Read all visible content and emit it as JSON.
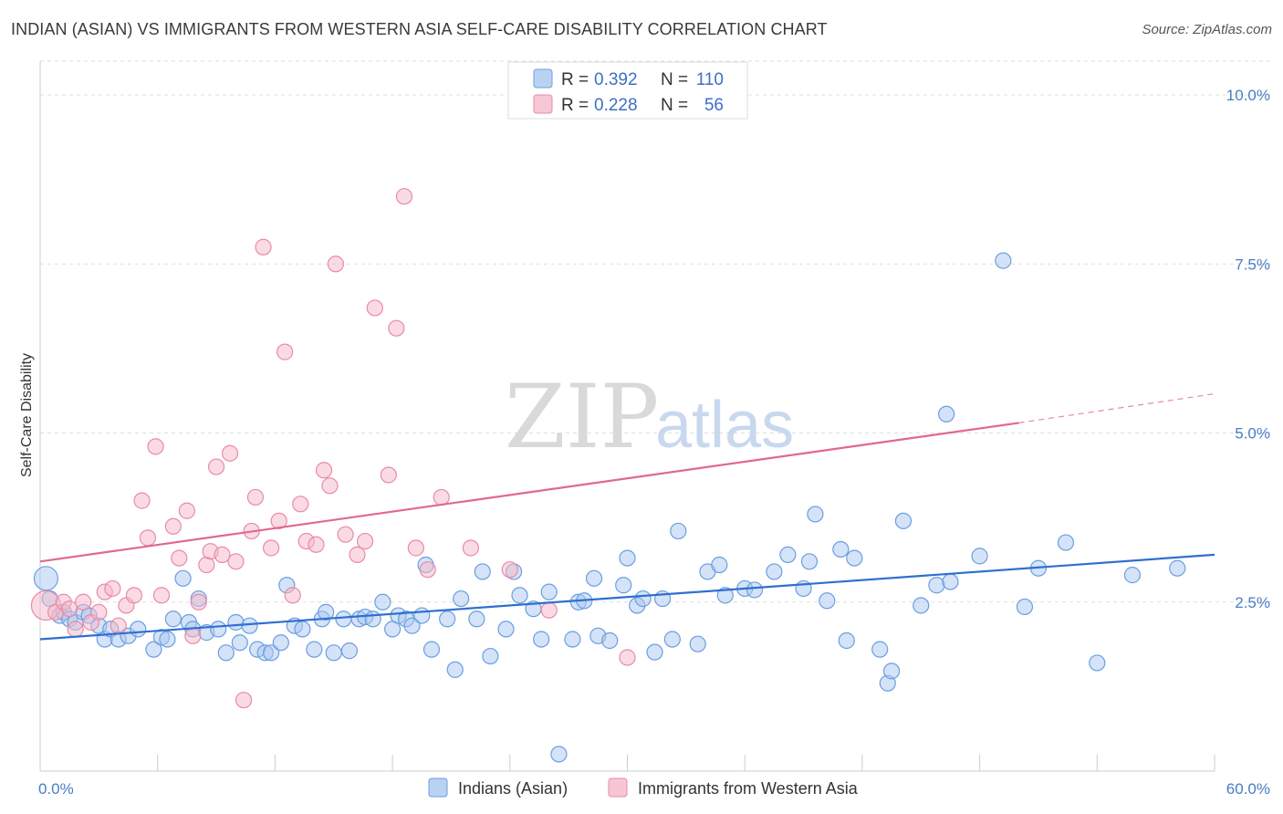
{
  "title": "INDIAN (ASIAN) VS IMMIGRANTS FROM WESTERN ASIA SELF-CARE DISABILITY CORRELATION CHART",
  "source": "Source: ZipAtlas.com",
  "watermark": {
    "zip": "ZIP",
    "atlas": "atlas"
  },
  "legend_top": [
    {
      "r_label": "R =",
      "r_value": "0.392",
      "n_label": "N =",
      "n_value": "110",
      "color": "#a9c7ef"
    },
    {
      "r_label": "R =",
      "r_value": "0.228",
      "n_label": "N =",
      "n_value": "56",
      "color": "#f5b8c9"
    }
  ],
  "legend_bottom": [
    {
      "label": "Indians (Asian)",
      "color": "#a9c7ef"
    },
    {
      "label": "Immigrants from Western Asia",
      "color": "#f5b8c9"
    }
  ],
  "chart_data": {
    "type": "scatter",
    "xlabel": "",
    "ylabel": "Self-Care Disability",
    "xlim": [
      0,
      60
    ],
    "ylim": [
      0,
      10.5
    ],
    "x_tick_labels": [
      "0.0%",
      "60.0%"
    ],
    "y_ticks": [
      2.5,
      5.0,
      7.5,
      10.0
    ],
    "y_tick_labels": [
      "2.5%",
      "5.0%",
      "7.5%",
      "10.0%"
    ],
    "grid": true,
    "series": [
      {
        "name": "Indians (Asian)",
        "color": "#6a9ee0",
        "fill": "#a9c7ef",
        "trend_color": "#2f6fd0",
        "trend": {
          "x0": 0,
          "y0": 1.95,
          "x1": 60,
          "y1": 3.2
        },
        "points": [
          [
            0.3,
            2.85
          ],
          [
            0.5,
            2.55
          ],
          [
            1.0,
            2.3
          ],
          [
            1.2,
            2.35
          ],
          [
            1.5,
            2.25
          ],
          [
            1.8,
            2.2
          ],
          [
            2.2,
            2.35
          ],
          [
            2.5,
            2.3
          ],
          [
            3.0,
            2.15
          ],
          [
            3.3,
            1.95
          ],
          [
            3.6,
            2.1
          ],
          [
            4.0,
            1.95
          ],
          [
            4.5,
            2.0
          ],
          [
            5.0,
            2.1
          ],
          [
            5.8,
            1.8
          ],
          [
            6.2,
            1.98
          ],
          [
            6.5,
            1.95
          ],
          [
            6.8,
            2.25
          ],
          [
            7.3,
            2.85
          ],
          [
            7.6,
            2.2
          ],
          [
            7.8,
            2.1
          ],
          [
            8.1,
            2.55
          ],
          [
            8.5,
            2.05
          ],
          [
            9.1,
            2.1
          ],
          [
            9.5,
            1.75
          ],
          [
            10.0,
            2.2
          ],
          [
            10.2,
            1.9
          ],
          [
            10.7,
            2.15
          ],
          [
            11.1,
            1.8
          ],
          [
            11.5,
            1.75
          ],
          [
            11.8,
            1.75
          ],
          [
            12.3,
            1.9
          ],
          [
            12.6,
            2.75
          ],
          [
            13.0,
            2.15
          ],
          [
            13.4,
            2.1
          ],
          [
            14.0,
            1.8
          ],
          [
            14.4,
            2.25
          ],
          [
            14.6,
            2.35
          ],
          [
            15.0,
            1.75
          ],
          [
            15.5,
            2.25
          ],
          [
            15.8,
            1.78
          ],
          [
            16.3,
            2.25
          ],
          [
            16.6,
            2.28
          ],
          [
            17.0,
            2.25
          ],
          [
            17.5,
            2.5
          ],
          [
            18.0,
            2.1
          ],
          [
            18.3,
            2.3
          ],
          [
            18.7,
            2.25
          ],
          [
            19.0,
            2.15
          ],
          [
            19.5,
            2.3
          ],
          [
            19.7,
            3.05
          ],
          [
            20.0,
            1.8
          ],
          [
            20.8,
            2.25
          ],
          [
            21.2,
            1.5
          ],
          [
            21.5,
            2.55
          ],
          [
            22.3,
            2.25
          ],
          [
            22.6,
            2.95
          ],
          [
            23.0,
            1.7
          ],
          [
            23.8,
            2.1
          ],
          [
            24.2,
            2.95
          ],
          [
            24.5,
            2.6
          ],
          [
            25.2,
            2.4
          ],
          [
            25.6,
            1.95
          ],
          [
            26.0,
            2.65
          ],
          [
            26.5,
            0.25
          ],
          [
            27.2,
            1.95
          ],
          [
            27.5,
            2.5
          ],
          [
            27.8,
            2.52
          ],
          [
            28.3,
            2.85
          ],
          [
            28.5,
            2.0
          ],
          [
            29.1,
            1.93
          ],
          [
            29.8,
            2.75
          ],
          [
            30.0,
            3.15
          ],
          [
            30.5,
            2.45
          ],
          [
            30.8,
            2.55
          ],
          [
            31.4,
            1.76
          ],
          [
            31.8,
            2.55
          ],
          [
            32.3,
            1.95
          ],
          [
            32.6,
            3.55
          ],
          [
            33.6,
            1.88
          ],
          [
            34.1,
            2.95
          ],
          [
            34.7,
            3.05
          ],
          [
            35.0,
            2.6
          ],
          [
            36.0,
            2.7
          ],
          [
            36.5,
            2.68
          ],
          [
            37.5,
            2.95
          ],
          [
            38.2,
            3.2
          ],
          [
            39.0,
            2.7
          ],
          [
            39.3,
            3.1
          ],
          [
            39.6,
            3.8
          ],
          [
            40.2,
            2.52
          ],
          [
            40.9,
            3.28
          ],
          [
            41.2,
            1.93
          ],
          [
            41.6,
            3.15
          ],
          [
            42.9,
            1.8
          ],
          [
            43.3,
            1.3
          ],
          [
            43.5,
            1.48
          ],
          [
            44.1,
            3.7
          ],
          [
            45.0,
            2.45
          ],
          [
            45.8,
            2.75
          ],
          [
            46.3,
            5.28
          ],
          [
            46.5,
            2.8
          ],
          [
            48.0,
            3.18
          ],
          [
            49.2,
            7.55
          ],
          [
            50.3,
            2.43
          ],
          [
            51.0,
            3.0
          ],
          [
            52.4,
            3.38
          ],
          [
            54.0,
            1.6
          ],
          [
            55.8,
            2.9
          ],
          [
            58.1,
            3.0
          ]
        ]
      },
      {
        "name": "Immigrants from Western Asia",
        "color": "#e98aa6",
        "fill": "#f5b8c9",
        "trend_color": "#e06890",
        "trend": {
          "x0": 0,
          "y0": 3.1,
          "x1": 50,
          "y1": 5.15
        },
        "trend_dashed_to": {
          "x": 60,
          "y": 5.58
        },
        "points": [
          [
            0.3,
            2.45
          ],
          [
            0.8,
            2.35
          ],
          [
            1.2,
            2.5
          ],
          [
            1.5,
            2.4
          ],
          [
            1.8,
            2.1
          ],
          [
            2.2,
            2.5
          ],
          [
            2.6,
            2.2
          ],
          [
            3.0,
            2.35
          ],
          [
            3.3,
            2.65
          ],
          [
            3.7,
            2.7
          ],
          [
            4.0,
            2.15
          ],
          [
            4.4,
            2.45
          ],
          [
            4.8,
            2.6
          ],
          [
            5.2,
            4.0
          ],
          [
            5.5,
            3.45
          ],
          [
            5.9,
            4.8
          ],
          [
            6.2,
            2.6
          ],
          [
            6.8,
            3.62
          ],
          [
            7.1,
            3.15
          ],
          [
            7.5,
            3.85
          ],
          [
            7.8,
            2.0
          ],
          [
            8.1,
            2.5
          ],
          [
            8.5,
            3.05
          ],
          [
            8.7,
            3.25
          ],
          [
            9.0,
            4.5
          ],
          [
            9.3,
            3.2
          ],
          [
            9.7,
            4.7
          ],
          [
            10.0,
            3.1
          ],
          [
            10.4,
            1.05
          ],
          [
            10.8,
            3.55
          ],
          [
            11.0,
            4.05
          ],
          [
            11.4,
            7.75
          ],
          [
            11.8,
            3.3
          ],
          [
            12.2,
            3.7
          ],
          [
            12.5,
            6.2
          ],
          [
            12.9,
            2.6
          ],
          [
            13.3,
            3.95
          ],
          [
            13.6,
            3.4
          ],
          [
            14.1,
            3.35
          ],
          [
            14.5,
            4.45
          ],
          [
            14.8,
            4.22
          ],
          [
            15.1,
            7.5
          ],
          [
            15.6,
            3.5
          ],
          [
            16.2,
            3.2
          ],
          [
            16.6,
            3.4
          ],
          [
            17.1,
            6.85
          ],
          [
            17.8,
            4.38
          ],
          [
            18.2,
            6.55
          ],
          [
            18.6,
            8.5
          ],
          [
            19.2,
            3.3
          ],
          [
            19.8,
            2.98
          ],
          [
            20.5,
            4.05
          ],
          [
            22.0,
            3.3
          ],
          [
            24.0,
            2.98
          ],
          [
            26.0,
            2.38
          ],
          [
            30.0,
            1.68
          ]
        ]
      }
    ]
  }
}
